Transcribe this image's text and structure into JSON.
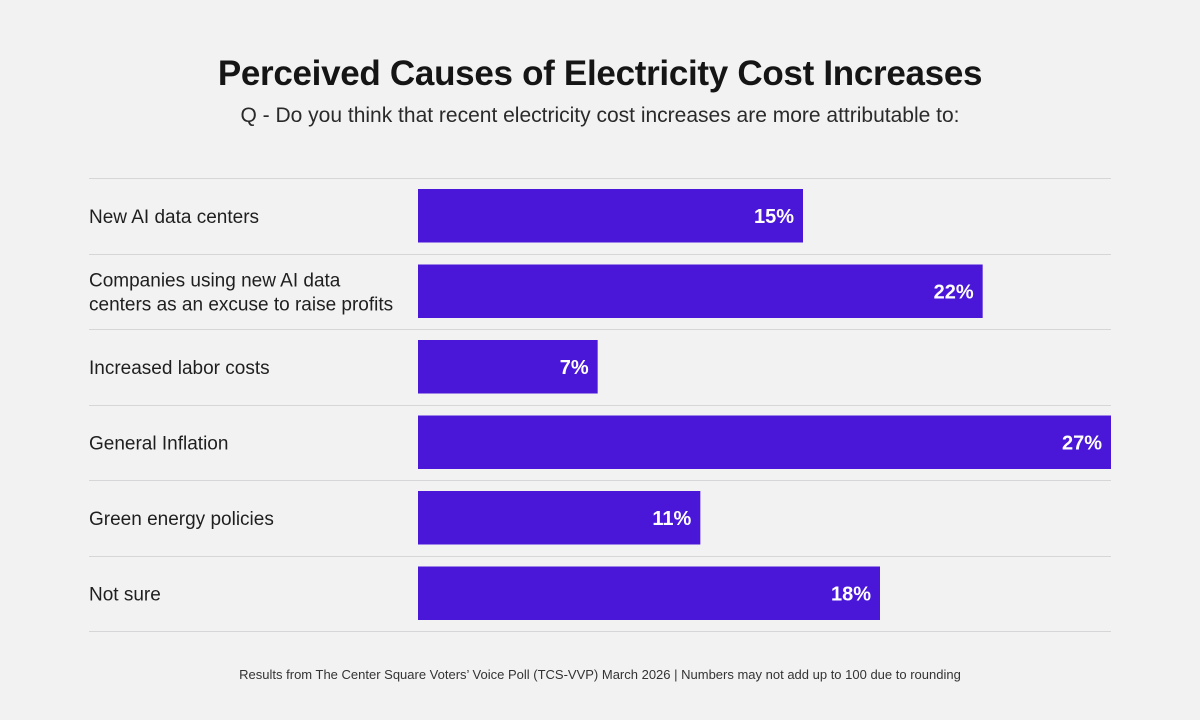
{
  "chart_data": {
    "type": "bar",
    "orientation": "horizontal",
    "title": "Perceived Causes of Electricity Cost Increases",
    "subtitle": "Q - Do you think that recent electricity cost increases are more attributable to:",
    "categories": [
      [
        "New AI data centers"
      ],
      [
        "Companies using new AI data",
        "centers as an excuse to raise profits"
      ],
      [
        "Increased labor costs"
      ],
      [
        "General Inflation"
      ],
      [
        "Green energy policies"
      ],
      [
        "Not sure"
      ]
    ],
    "values": [
      15,
      22,
      7,
      27,
      11,
      18
    ],
    "value_labels": [
      "15%",
      "22%",
      "7%",
      "27%",
      "11%",
      "18%"
    ],
    "unit": "%",
    "xlim": [
      0,
      27
    ],
    "bar_color": "#4a17d9",
    "grid": false,
    "footnote": "Results from The Center Square Voters’ Voice Poll (TCS-VVP) March 2026 | Numbers may not add up to 100 due to rounding"
  }
}
